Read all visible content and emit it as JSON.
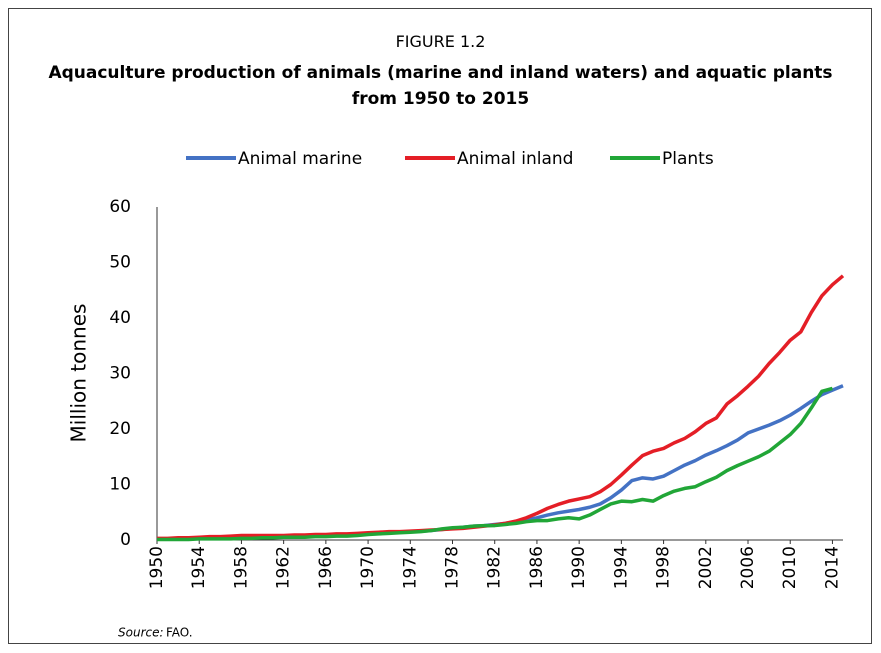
{
  "chart_data": {
    "type": "line",
    "figure_label": "FIGURE 1.2",
    "title": "Aquaculture production of animals (marine and inland waters) and aquatic plants from 1950 to 2015",
    "y_label": "Million tonnes",
    "source_label": "Source:",
    "source": "FAO.",
    "x": [
      1950,
      1951,
      1952,
      1953,
      1954,
      1955,
      1956,
      1957,
      1958,
      1959,
      1960,
      1961,
      1962,
      1963,
      1964,
      1965,
      1966,
      1967,
      1968,
      1969,
      1970,
      1971,
      1972,
      1973,
      1974,
      1975,
      1976,
      1977,
      1978,
      1979,
      1980,
      1981,
      1982,
      1983,
      1984,
      1985,
      1986,
      1987,
      1988,
      1989,
      1990,
      1991,
      1992,
      1993,
      1994,
      1995,
      1996,
      1997,
      1998,
      1999,
      2000,
      2001,
      2002,
      2003,
      2004,
      2005,
      2006,
      2007,
      2008,
      2009,
      2010,
      2011,
      2012,
      2013,
      2014,
      2015
    ],
    "series": [
      {
        "name": "Animal marine",
        "color": "#4472c4",
        "values": [
          0.2,
          0.2,
          0.3,
          0.3,
          0.3,
          0.4,
          0.4,
          0.4,
          0.5,
          0.5,
          0.6,
          0.6,
          0.6,
          0.7,
          0.7,
          0.8,
          0.8,
          0.9,
          0.9,
          1.0,
          1.1,
          1.2,
          1.3,
          1.4,
          1.5,
          1.6,
          1.7,
          1.9,
          2.1,
          2.3,
          2.5,
          2.6,
          2.8,
          3.0,
          3.3,
          3.6,
          4.0,
          4.5,
          4.9,
          5.2,
          5.5,
          5.9,
          6.5,
          7.6,
          9.0,
          10.7,
          11.2,
          11.0,
          11.5,
          12.5,
          13.5,
          14.3,
          15.3,
          16.1,
          17.0,
          18.0,
          19.3,
          20.0,
          20.7,
          21.5,
          22.5,
          23.7,
          25.0,
          26.2,
          27.0,
          27.8
        ]
      },
      {
        "name": "Animal inland",
        "color": "#e41e26",
        "values": [
          0.3,
          0.3,
          0.4,
          0.4,
          0.5,
          0.6,
          0.6,
          0.7,
          0.8,
          0.8,
          0.8,
          0.8,
          0.8,
          0.9,
          0.9,
          1.0,
          1.0,
          1.1,
          1.1,
          1.2,
          1.3,
          1.4,
          1.5,
          1.5,
          1.6,
          1.7,
          1.8,
          1.9,
          2.0,
          2.1,
          2.3,
          2.5,
          2.7,
          3.0,
          3.4,
          4.0,
          4.8,
          5.7,
          6.4,
          7.0,
          7.4,
          7.8,
          8.7,
          10.0,
          11.7,
          13.5,
          15.2,
          16.0,
          16.5,
          17.5,
          18.3,
          19.5,
          21.0,
          22.0,
          24.5,
          26.0,
          27.7,
          29.5,
          31.8,
          33.8,
          36.0,
          37.5,
          41.0,
          44.0,
          46.0,
          47.6
        ]
      },
      {
        "name": "Plants",
        "color": "#21a637",
        "values": [
          0.1,
          0.1,
          0.1,
          0.1,
          0.2,
          0.2,
          0.2,
          0.2,
          0.3,
          0.3,
          0.4,
          0.4,
          0.5,
          0.5,
          0.5,
          0.6,
          0.6,
          0.7,
          0.7,
          0.8,
          1.0,
          1.1,
          1.2,
          1.3,
          1.4,
          1.5,
          1.7,
          2.0,
          2.2,
          2.3,
          2.5,
          2.6,
          2.6,
          2.8,
          3.0,
          3.3,
          3.5,
          3.5,
          3.8,
          4.0,
          3.8,
          4.5,
          5.5,
          6.5,
          7.0,
          6.9,
          7.3,
          7.0,
          8.0,
          8.8,
          9.3,
          9.6,
          10.5,
          11.3,
          12.5,
          13.4,
          14.2,
          15.0,
          16.0,
          17.5,
          19.0,
          21.0,
          23.8,
          26.8,
          27.3,
          null
        ]
      }
    ],
    "xlim": [
      1950,
      2015
    ],
    "xticks": [
      1950,
      1954,
      1958,
      1962,
      1966,
      1970,
      1974,
      1978,
      1982,
      1986,
      1990,
      1994,
      1998,
      2002,
      2006,
      2010,
      2014
    ],
    "ylim": [
      0,
      60
    ],
    "yticks": [
      0,
      10,
      20,
      30,
      40,
      50,
      60
    ],
    "grid": false,
    "legend": "top"
  }
}
